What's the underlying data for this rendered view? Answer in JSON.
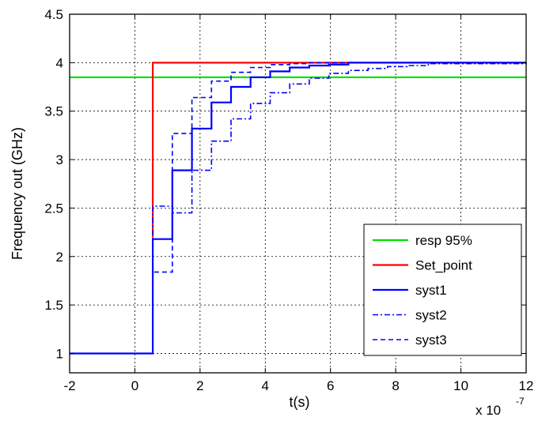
{
  "chart_data": {
    "type": "line",
    "xlabel": "t(s)",
    "ylabel": "Frequency out (GHz)",
    "x_multiplier_base": "x 10",
    "x_multiplier_exp": "-7",
    "xlim": [
      -2,
      12
    ],
    "ylim": [
      0.8,
      4.5
    ],
    "x_ticks": [
      -2,
      0,
      2,
      4,
      6,
      8,
      10,
      12
    ],
    "x_tick_labels": [
      "-2",
      "0",
      "2",
      "4",
      "6",
      "8",
      "10",
      "12"
    ],
    "y_ticks": [
      1,
      1.5,
      2,
      2.5,
      3,
      3.5,
      4,
      4.5
    ],
    "y_tick_labels": [
      "1",
      "1.5",
      "2",
      "2.5",
      "3",
      "3.5",
      "4",
      "4.5"
    ],
    "grid": true,
    "legend_position": "bottom-right",
    "series": [
      {
        "name": "resp 95%",
        "color": "#00e000",
        "style": "solid",
        "x": [
          -2,
          12
        ],
        "y": [
          3.85,
          3.85
        ]
      },
      {
        "name": "Set_point",
        "color": "#ff0000",
        "style": "solid",
        "x": [
          0.55,
          0.55,
          12
        ],
        "y": [
          2.2,
          4.0,
          4.0
        ]
      },
      {
        "name": "syst1",
        "color": "#0000ff",
        "style": "solid",
        "step": true,
        "x": [
          -2,
          0.55,
          1.15,
          1.75,
          2.35,
          2.95,
          3.55,
          4.15,
          4.75,
          5.35,
          5.95,
          6.55,
          12
        ],
        "y": [
          1.0,
          2.18,
          2.89,
          3.32,
          3.59,
          3.75,
          3.85,
          3.91,
          3.95,
          3.97,
          3.98,
          4.0,
          4.0
        ]
      },
      {
        "name": "syst2",
        "color": "#0000ff",
        "style": "dashdot",
        "step": true,
        "x": [
          -2,
          0.55,
          1.15,
          1.75,
          2.35,
          2.95,
          3.55,
          4.15,
          4.75,
          5.35,
          5.95,
          6.55,
          7.15,
          7.75,
          8.35,
          9.0,
          12
        ],
        "y": [
          1.0,
          2.52,
          2.45,
          2.89,
          3.19,
          3.42,
          3.58,
          3.69,
          3.78,
          3.84,
          3.89,
          3.92,
          3.94,
          3.96,
          3.97,
          3.99,
          4.0
        ]
      },
      {
        "name": "syst3",
        "color": "#0000ff",
        "style": "dashed",
        "step": true,
        "x": [
          -2,
          0.55,
          1.15,
          1.75,
          2.35,
          2.95,
          3.55,
          4.15,
          4.75,
          5.35,
          12
        ],
        "y": [
          1.0,
          1.84,
          3.27,
          3.64,
          3.81,
          3.9,
          3.95,
          3.98,
          3.99,
          4.0,
          4.0
        ]
      }
    ]
  }
}
